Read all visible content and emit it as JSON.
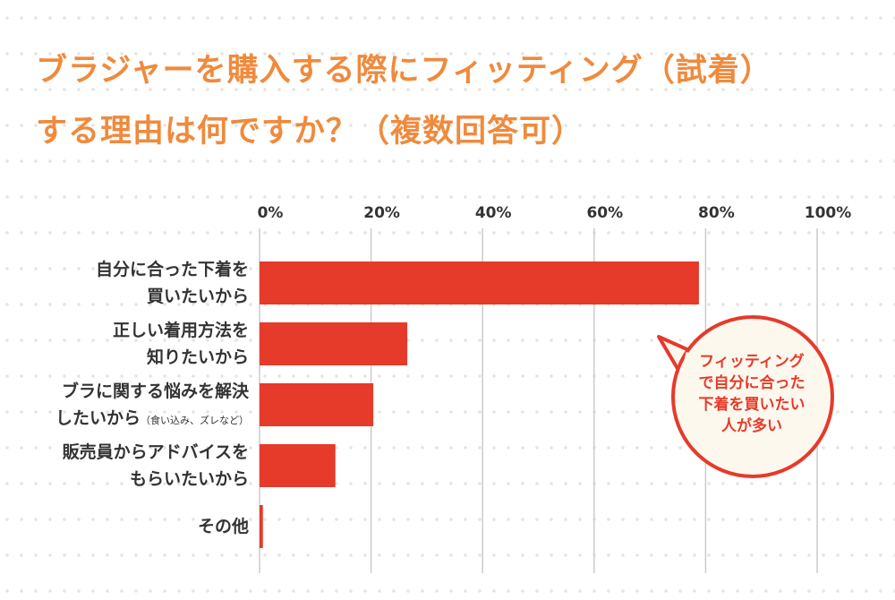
{
  "title_lines": [
    "ブラジャーを購入する際にフィッティング（試着）",
    "する理由は何ですか？（複数回答可）"
  ],
  "chart_data": {
    "type": "bar",
    "orientation": "horizontal",
    "title": "ブラジャーを購入する際にフィッティング（試着）する理由は何ですか？（複数回答可）",
    "categories": [
      {
        "lines": [
          "自分に合った下着を",
          "買いたいから"
        ],
        "note": ""
      },
      {
        "lines": [
          "正しい着用方法を",
          "知りたいから"
        ],
        "note": ""
      },
      {
        "lines": [
          "ブラに関する悩みを解決",
          "したいから"
        ],
        "note": "（食い込み、ズレなど）"
      },
      {
        "lines": [
          "販売員からアドバイスを",
          "もらいたいから"
        ],
        "note": ""
      },
      {
        "lines": [
          "その他"
        ],
        "note": ""
      }
    ],
    "values": [
      78.8,
      26.5,
      20.4,
      13.6,
      0.6
    ],
    "xlim": [
      0,
      100
    ],
    "ticks": [
      "0%",
      "20%",
      "40%",
      "60%",
      "80%",
      "100%"
    ],
    "grid": true,
    "bar_color": "#e63a2a",
    "annotation": [
      "フィッティング",
      "で自分に合った",
      "下着を買いたい",
      "人が多い"
    ]
  },
  "colors": {
    "title": "#f08a3c",
    "bar": "#e63a2a",
    "grid": "#cccccc",
    "bubble_fill": "#fdf8ee"
  }
}
